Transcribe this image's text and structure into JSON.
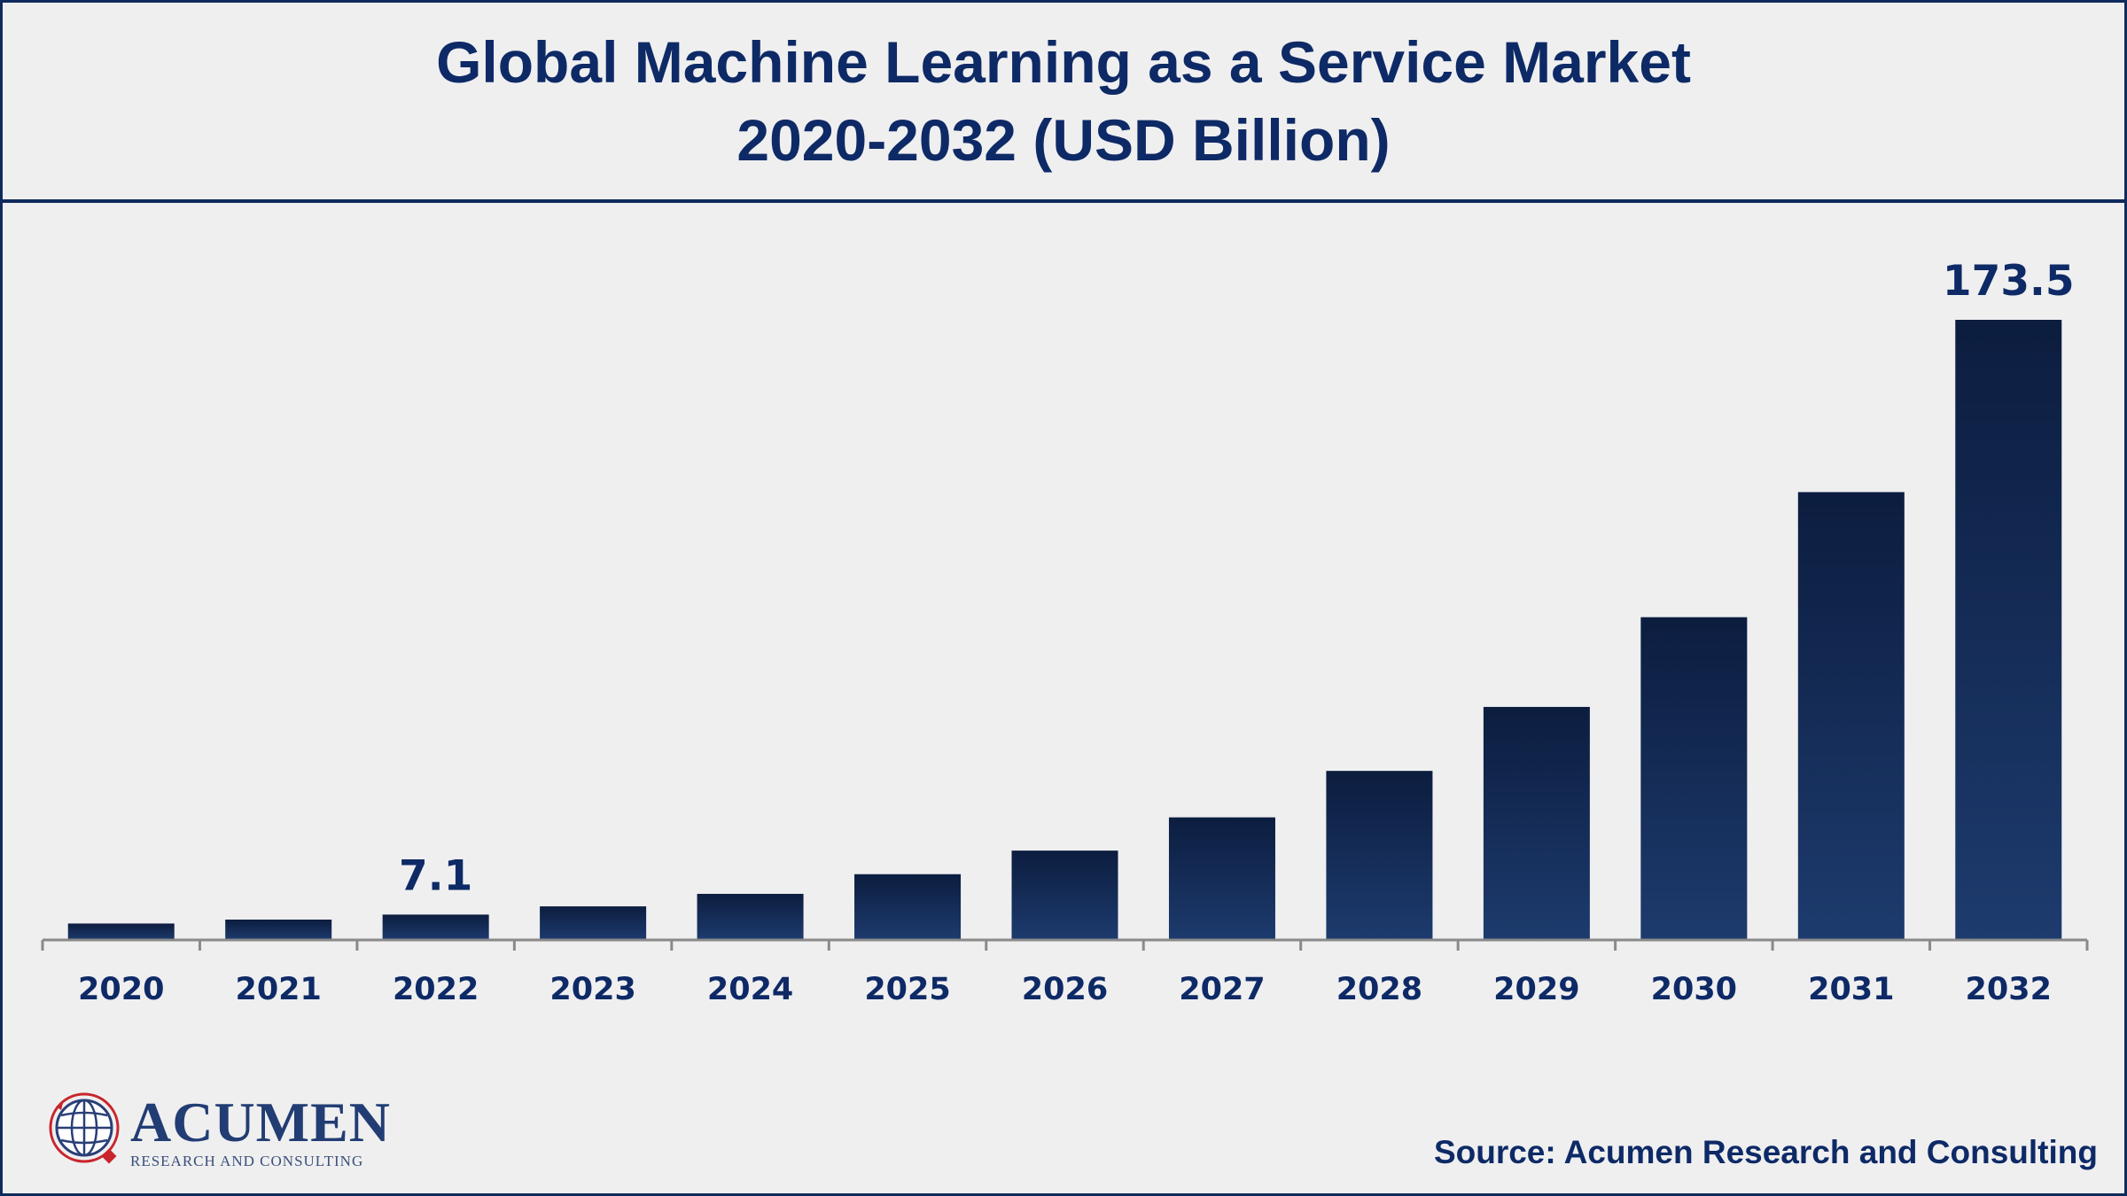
{
  "title": {
    "line1": "Global Machine Learning as a Service Market",
    "line2": "2020-2032 (USD Billion)"
  },
  "colors": {
    "title": "#0e2a66",
    "bar_top": "#0c1d3f",
    "bar_bottom": "#1d3b6e",
    "axis": "#8a8a8a",
    "border": "#0f2a5c",
    "background": "#efeff0"
  },
  "chart_data": {
    "type": "bar",
    "title": "Global Machine Learning as a Service Market 2020-2032 (USD Billion)",
    "categories": [
      "2020",
      "2021",
      "2022",
      "2023",
      "2024",
      "2025",
      "2026",
      "2027",
      "2028",
      "2029",
      "2030",
      "2031",
      "2032"
    ],
    "values": [
      4.6,
      5.7,
      7.1,
      9.4,
      12.9,
      18.4,
      25.0,
      34.3,
      47.3,
      65.2,
      90.3,
      125.3,
      173.5
    ],
    "data_labels": [
      {
        "category": "2022",
        "text": "7.1"
      },
      {
        "category": "2032",
        "text": "173.5"
      }
    ],
    "ylim": [
      0,
      200
    ],
    "grid": false,
    "legend": "none"
  },
  "logo": {
    "name": "ACUMEN",
    "tagline": "RESEARCH AND CONSULTING"
  },
  "source": "Source: Acumen Research and Consulting"
}
